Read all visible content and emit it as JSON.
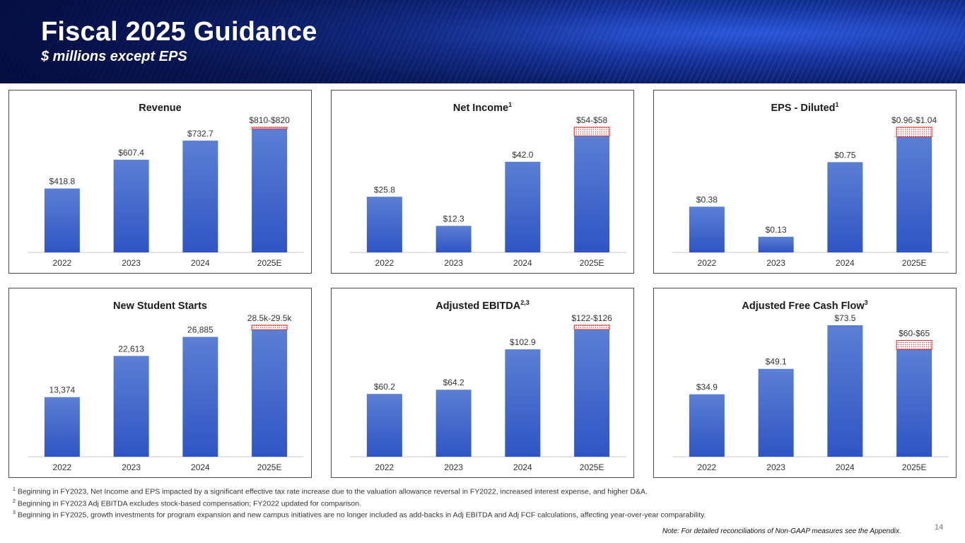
{
  "header": {
    "title": "Fiscal 2025 Guidance",
    "subtitle": "$ millions except EPS"
  },
  "colors": {
    "bar_top": "#5b7fd4",
    "bar_bottom": "#2e55c4",
    "guidance_border": "#e03030"
  },
  "chart_data": [
    {
      "type": "bar",
      "title": "Revenue",
      "title_sup": "",
      "categories": [
        "2022",
        "2023",
        "2024",
        "2025E"
      ],
      "values": [
        418.8,
        607.4,
        732.7,
        815
      ],
      "guidance_range": [
        810,
        820
      ],
      "labels": [
        "$418.8",
        "$607.4",
        "$732.7",
        "$810-$820"
      ],
      "ylim": [
        0,
        820
      ]
    },
    {
      "type": "bar",
      "title": "Net Income",
      "title_sup": "1",
      "categories": [
        "2022",
        "2023",
        "2024",
        "2025E"
      ],
      "values": [
        25.8,
        12.3,
        42.0,
        56
      ],
      "guidance_range": [
        54,
        58
      ],
      "labels": [
        "$25.8",
        "$12.3",
        "$42.0",
        "$54-$58"
      ],
      "ylim": [
        0,
        58
      ]
    },
    {
      "type": "bar",
      "title": "EPS - Diluted",
      "title_sup": "1",
      "categories": [
        "2022",
        "2023",
        "2024",
        "2025E"
      ],
      "values": [
        0.38,
        0.13,
        0.75,
        1.0
      ],
      "guidance_range": [
        0.96,
        1.04
      ],
      "labels": [
        "$0.38",
        "$0.13",
        "$0.75",
        "$0.96-$1.04"
      ],
      "ylim": [
        0,
        1.04
      ]
    },
    {
      "type": "bar",
      "title": "New Student Starts",
      "title_sup": "",
      "categories": [
        "2022",
        "2023",
        "2024",
        "2025E"
      ],
      "values": [
        13374,
        22613,
        26885,
        29000
      ],
      "guidance_range": [
        28500,
        29500
      ],
      "labels": [
        "13,374",
        "22,613",
        "26,885",
        "28.5k-29.5k"
      ],
      "ylim": [
        0,
        29500
      ]
    },
    {
      "type": "bar",
      "title": "Adjusted EBITDA",
      "title_sup": "2,3",
      "categories": [
        "2022",
        "2023",
        "2024",
        "2025E"
      ],
      "values": [
        60.2,
        64.2,
        102.9,
        124
      ],
      "guidance_range": [
        122,
        126
      ],
      "labels": [
        "$60.2",
        "$64.2",
        "$102.9",
        "$122-$126"
      ],
      "ylim": [
        0,
        126
      ]
    },
    {
      "type": "bar",
      "title": "Adjusted Free Cash Flow",
      "title_sup": "3",
      "categories": [
        "2022",
        "2023",
        "2024",
        "2025E"
      ],
      "values": [
        34.9,
        49.1,
        73.5,
        62.5
      ],
      "guidance_range": [
        60,
        65
      ],
      "labels": [
        "$34.9",
        "$49.1",
        "$73.5",
        "$60-$65"
      ],
      "ylim": [
        0,
        73.5
      ]
    }
  ],
  "footnotes": [
    {
      "mark": "1",
      "text": "Beginning in FY2023, Net Income and EPS impacted by a significant effective tax rate increase due to the valuation allowance reversal in FY2022, increased interest expense, and higher D&A."
    },
    {
      "mark": "2",
      "text": "Beginning in FY2023 Adj EBITDA excludes stock-based compensation; FY2022 updated for comparison."
    },
    {
      "mark": "3",
      "text": "Beginning in FY2025, growth investments for program expansion and new campus initiatives are no longer included as add-backs in Adj EBITDA and Adj FCF calculations, affecting year-over-year comparability."
    }
  ],
  "note": "Note: For detailed reconciliations of Non-GAAP measures see the Appendix.",
  "page_number": "14"
}
